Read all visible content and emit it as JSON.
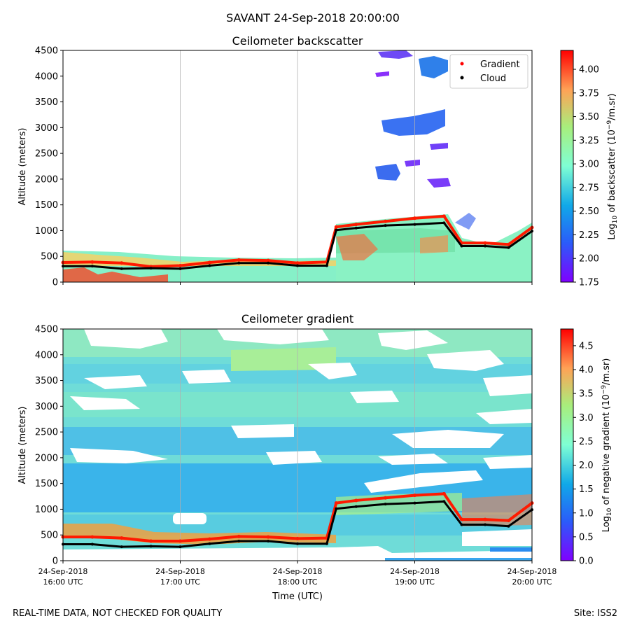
{
  "figure": {
    "suptitle": "SAVANT 24-Sep-2018 20:00:00",
    "footer_left": "REAL-TIME DATA, NOT CHECKED FOR QUALITY",
    "footer_right": "Site: ISS2"
  },
  "chart_data": [
    {
      "type": "heatmap",
      "title": "Ceilometer backscatter",
      "xlabel": "",
      "ylabel": "Altitude (meters)",
      "ylim": [
        0,
        4500
      ],
      "yticks": [
        0,
        500,
        1000,
        1500,
        2000,
        2500,
        3000,
        3500,
        4000,
        4500
      ],
      "x_ticks": [
        {
          "date": "24-Sep-2018",
          "time": "16:00 UTC"
        },
        {
          "date": "24-Sep-2018",
          "time": "17:00 UTC"
        },
        {
          "date": "24-Sep-2018",
          "time": "18:00 UTC"
        },
        {
          "date": "24-Sep-2018",
          "time": "19:00 UTC"
        },
        {
          "date": "24-Sep-2018",
          "time": "20:00 UTC"
        }
      ],
      "x_tick_labels_visible": false,
      "grid": "x",
      "legend": {
        "placement": "top-right",
        "entries": [
          {
            "label": "Gradient",
            "marker": "red-dot"
          },
          {
            "label": "Cloud",
            "marker": "black-dot"
          }
        ]
      },
      "colorbar": {
        "label_prefix": "Log",
        "label_sub": "10",
        "label_mid": " of backscatter (10",
        "label_sup": "−9",
        "label_suffix": "/m.sr)",
        "range": [
          1.75,
          4.2
        ],
        "ticks": [
          "1.75",
          "2.00",
          "2.25",
          "2.50",
          "2.75",
          "3.00",
          "3.25",
          "3.50",
          "3.75",
          "4.00"
        ],
        "colormap": "rainbow"
      },
      "gradient_series": [
        {
          "name": "Gradient",
          "x": [
            16.0,
            16.25,
            16.5,
            16.75,
            17.0,
            17.25,
            17.5,
            17.75,
            18.0,
            18.25,
            18.33,
            18.5,
            18.75,
            19.0,
            19.25,
            19.4,
            19.6,
            19.8,
            20.0
          ],
          "y": [
            380,
            390,
            370,
            300,
            320,
            380,
            430,
            420,
            370,
            390,
            1070,
            1120,
            1180,
            1240,
            1280,
            760,
            760,
            730,
            1060
          ]
        }
      ],
      "cloud_series": [
        {
          "name": "Cloud",
          "x": [
            16.0,
            16.25,
            16.5,
            16.75,
            17.0,
            17.25,
            17.5,
            17.75,
            18.0,
            18.25,
            18.33,
            18.5,
            18.75,
            19.0,
            19.25,
            19.4,
            19.6,
            19.8,
            20.0
          ],
          "y": [
            310,
            310,
            260,
            270,
            260,
            320,
            370,
            370,
            320,
            320,
            1010,
            1050,
            1100,
            1120,
            1150,
            700,
            700,
            670,
            990
          ]
        }
      ]
    },
    {
      "type": "heatmap",
      "title": "Ceilometer gradient",
      "xlabel": "Time (UTC)",
      "ylabel": "Altitude (meters)",
      "ylim": [
        0,
        4500
      ],
      "yticks": [
        0,
        500,
        1000,
        1500,
        2000,
        2500,
        3000,
        3500,
        4000,
        4500
      ],
      "x_ticks": [
        {
          "date": "24-Sep-2018",
          "time": "16:00 UTC"
        },
        {
          "date": "24-Sep-2018",
          "time": "17:00 UTC"
        },
        {
          "date": "24-Sep-2018",
          "time": "18:00 UTC"
        },
        {
          "date": "24-Sep-2018",
          "time": "19:00 UTC"
        },
        {
          "date": "24-Sep-2018",
          "time": "20:00 UTC"
        }
      ],
      "x_tick_labels_visible": true,
      "grid": "x",
      "colorbar": {
        "label_prefix": "Log",
        "label_sub": "10",
        "label_mid": " of negative gradient (10",
        "label_sup": "−9",
        "label_suffix": "/m.sr)",
        "range": [
          0.0,
          4.85
        ],
        "ticks": [
          "0.0",
          "0.5",
          "1.0",
          "1.5",
          "2.0",
          "2.5",
          "3.0",
          "3.5",
          "4.0",
          "4.5"
        ],
        "colormap": "rainbow"
      },
      "gradient_series": [
        {
          "name": "Gradient",
          "x": [
            16.0,
            16.25,
            16.5,
            16.75,
            17.0,
            17.25,
            17.5,
            17.75,
            18.0,
            18.25,
            18.33,
            18.5,
            18.75,
            19.0,
            19.25,
            19.4,
            19.6,
            19.8,
            20.0
          ],
          "y": [
            460,
            460,
            440,
            380,
            380,
            420,
            470,
            460,
            430,
            440,
            1120,
            1170,
            1220,
            1270,
            1300,
            800,
            800,
            780,
            1120
          ]
        }
      ],
      "cloud_series": [
        {
          "name": "Cloud",
          "x": [
            16.0,
            16.25,
            16.5,
            16.75,
            17.0,
            17.25,
            17.5,
            17.75,
            18.0,
            18.25,
            18.33,
            18.5,
            18.75,
            19.0,
            19.25,
            19.4,
            19.6,
            19.8,
            20.0
          ],
          "y": [
            320,
            320,
            270,
            280,
            270,
            330,
            380,
            380,
            330,
            330,
            1010,
            1050,
            1100,
            1120,
            1150,
            700,
            700,
            670,
            990
          ]
        }
      ]
    }
  ]
}
